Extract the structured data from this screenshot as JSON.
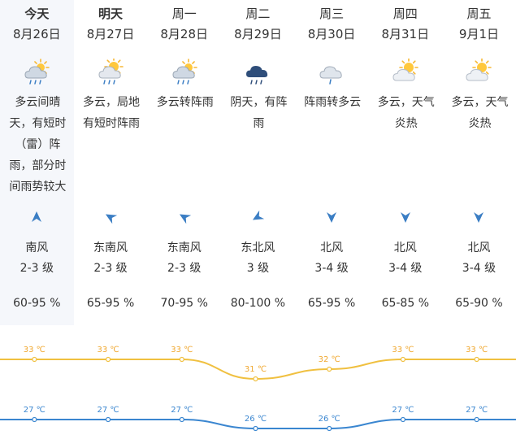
{
  "days": [
    {
      "name": "今天",
      "date": "8月26日",
      "icon": "cloudy-sunny-rain-icon",
      "desc": "多云间晴天，有短时（雷）阵雨，部分时间雨势较大",
      "wind_dir": "南风",
      "wind_level": "2-3 级",
      "wind_arrow": "arrow-up-icon",
      "humidity": "60-95 %",
      "high": "33 ℃",
      "low": "27 ℃"
    },
    {
      "name": "明天",
      "date": "8月27日",
      "icon": "sunny-cloudy-rain-icon",
      "desc": "多云，局地有短时阵雨",
      "wind_dir": "东南风",
      "wind_level": "2-3 级",
      "wind_arrow": "arrow-upleft-icon",
      "humidity": "65-95 %",
      "high": "33 ℃",
      "low": "27 ℃"
    },
    {
      "name": "周一",
      "date": "8月28日",
      "icon": "cloudy-sunny-rain-icon",
      "desc": "多云转阵雨",
      "wind_dir": "东南风",
      "wind_level": "2-3 级",
      "wind_arrow": "arrow-upleft-icon",
      "humidity": "70-95 %",
      "high": "33 ℃",
      "low": "27 ℃"
    },
    {
      "name": "周二",
      "date": "8月29日",
      "icon": "dark-cloud-rain-icon",
      "desc": "阴天，有阵雨",
      "wind_dir": "东北风",
      "wind_level": "3 级",
      "wind_arrow": "arrow-downleft-icon",
      "humidity": "80-100 %",
      "high": "31 ℃",
      "low": "26 ℃"
    },
    {
      "name": "周三",
      "date": "8月30日",
      "icon": "cloud-light-rain-icon",
      "desc": "阵雨转多云",
      "wind_dir": "北风",
      "wind_level": "3-4 级",
      "wind_arrow": "arrow-down-icon",
      "humidity": "65-95 %",
      "high": "32 ℃",
      "low": "26 ℃"
    },
    {
      "name": "周四",
      "date": "8月31日",
      "icon": "sunny-cloudy-icon",
      "desc": "多云，天气炎热",
      "wind_dir": "北风",
      "wind_level": "3-4 级",
      "wind_arrow": "arrow-down-icon",
      "humidity": "65-85 %",
      "high": "33 ℃",
      "low": "27 ℃"
    },
    {
      "name": "周五",
      "date": "9月1日",
      "icon": "sunny-cloudy-icon",
      "desc": "多云，天气炎热",
      "wind_dir": "北风",
      "wind_level": "3-4 级",
      "wind_arrow": "arrow-down-icon",
      "humidity": "65-90 %",
      "high": "33 ℃",
      "low": "27 ℃"
    }
  ],
  "chart_data": {
    "type": "line",
    "categories": [
      "今天",
      "明天",
      "周一",
      "周二",
      "周三",
      "周四",
      "周五"
    ],
    "series": [
      {
        "values": [
          33,
          33,
          33,
          31,
          32,
          33,
          33
        ],
        "color": "#f0c040"
      },
      {
        "values": [
          27,
          27,
          27,
          26,
          26,
          27,
          27
        ],
        "color": "#3a86d0"
      }
    ],
    "unit": "℃"
  },
  "colors": {
    "high_line": "#f0c040",
    "high_text": "#f0a830",
    "low_line": "#3a86d0",
    "low_text": "#3a86d0",
    "arrow": "#3b7ec4",
    "today_bg": "#f5f7fb"
  }
}
